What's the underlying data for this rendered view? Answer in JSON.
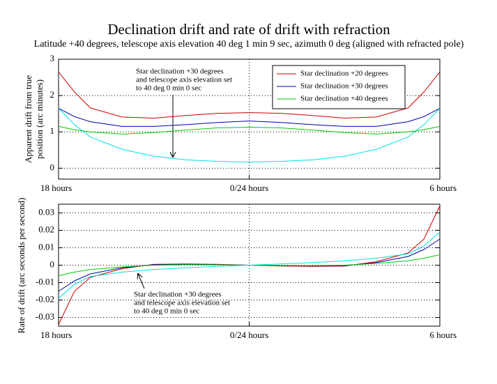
{
  "title": "Declination drift and rate of drift with refraction",
  "subtitle": "Latitude +40 degrees, telescope axis elevation 40 deg 1 min 9 sec, azimuth 0 deg (aligned with refracted pole)",
  "chart_data": [
    {
      "type": "line",
      "y_label": [
        "Apparent drift from true",
        "position (arc  minutes)"
      ],
      "x": [
        -6,
        -5.5,
        -5,
        -4,
        -3,
        -2,
        -1,
        0,
        1,
        2,
        3,
        4,
        5,
        5.5,
        6
      ],
      "xlim": [
        -6,
        6
      ],
      "xticks": [
        {
          "value": -6,
          "label": "18 hours"
        },
        {
          "value": 0,
          "label": "0/24 hours"
        },
        {
          "value": 6,
          "label": "6 hours"
        }
      ],
      "ylim": [
        -0.3,
        3
      ],
      "yticks": [
        0,
        1,
        2,
        3
      ],
      "grid": true,
      "legend": "upper right",
      "annotation": [
        "Star declination +30 degrees",
        "and telescope axis elevation set",
        "to 40 deg 0 min 0 sec"
      ],
      "series": [
        {
          "name": "Star declination +20 degrees",
          "color": "#cc0000",
          "values": [
            2.65,
            2.1,
            1.66,
            1.41,
            1.38,
            1.45,
            1.51,
            1.53,
            1.51,
            1.45,
            1.38,
            1.41,
            1.66,
            2.1,
            2.65
          ]
        },
        {
          "name": "Star declination +30 degrees",
          "color": "#0000aa",
          "values": [
            1.65,
            1.42,
            1.28,
            1.15,
            1.15,
            1.2,
            1.26,
            1.3,
            1.26,
            1.2,
            1.15,
            1.15,
            1.28,
            1.42,
            1.65
          ]
        },
        {
          "name": "Star declination +40 degrees",
          "color": "#00cc00",
          "values": [
            1.15,
            1.06,
            1.0,
            0.94,
            0.98,
            1.05,
            1.11,
            1.13,
            1.11,
            1.05,
            0.98,
            0.94,
            1.0,
            1.06,
            1.15
          ]
        },
        {
          "color": "#00e0e0",
          "values": [
            1.65,
            1.2,
            0.86,
            0.52,
            0.33,
            0.23,
            0.19,
            0.17,
            0.19,
            0.23,
            0.33,
            0.52,
            0.86,
            1.2,
            1.65
          ]
        }
      ]
    },
    {
      "type": "line",
      "y_label": [
        "Rate of drift (arc seconds per second)"
      ],
      "x": [
        -6,
        -5.5,
        -5,
        -4,
        -3,
        -2,
        -1,
        0,
        1,
        2,
        3,
        4,
        5,
        5.5,
        6
      ],
      "xlim": [
        -6,
        6
      ],
      "xticks": [
        {
          "value": -6,
          "label": "18 hours"
        },
        {
          "value": 0,
          "label": "0/24 hours"
        },
        {
          "value": 6,
          "label": "6 hours"
        }
      ],
      "ylim": [
        -0.035,
        0.035
      ],
      "yticks": [
        -0.03,
        -0.02,
        -0.01,
        0,
        0.01,
        0.02,
        0.03
      ],
      "grid": true,
      "annotation": [
        "Star declination +30 degrees",
        "and telescope axis elevation set",
        "to 40 deg 0 min 0 sec"
      ],
      "series": [
        {
          "color": "#cc0000",
          "values": [
            -0.034,
            -0.015,
            -0.007,
            -0.002,
            0.0005,
            0.0007,
            0.0005,
            0,
            -0.0005,
            -0.0007,
            -0.0005,
            0.002,
            0.007,
            0.015,
            0.034
          ]
        },
        {
          "color": "#0000aa",
          "values": [
            -0.015,
            -0.009,
            -0.005,
            -0.0015,
            0.0003,
            0.0005,
            0.0003,
            0,
            -0.0003,
            -0.0005,
            -0.0003,
            0.0015,
            0.005,
            0.009,
            0.015
          ]
        },
        {
          "color": "#00cc00",
          "values": [
            -0.006,
            -0.004,
            -0.0025,
            -0.001,
            0,
            0.0003,
            0.0002,
            0,
            -0.0002,
            -0.0003,
            0,
            0.001,
            0.0025,
            0.004,
            0.006
          ]
        },
        {
          "color": "#00e0e0",
          "values": [
            -0.019,
            -0.011,
            -0.0065,
            -0.004,
            -0.0025,
            -0.0015,
            -0.0007,
            0,
            0.0007,
            0.0015,
            0.0025,
            0.004,
            0.0065,
            0.011,
            0.019
          ]
        }
      ]
    }
  ]
}
